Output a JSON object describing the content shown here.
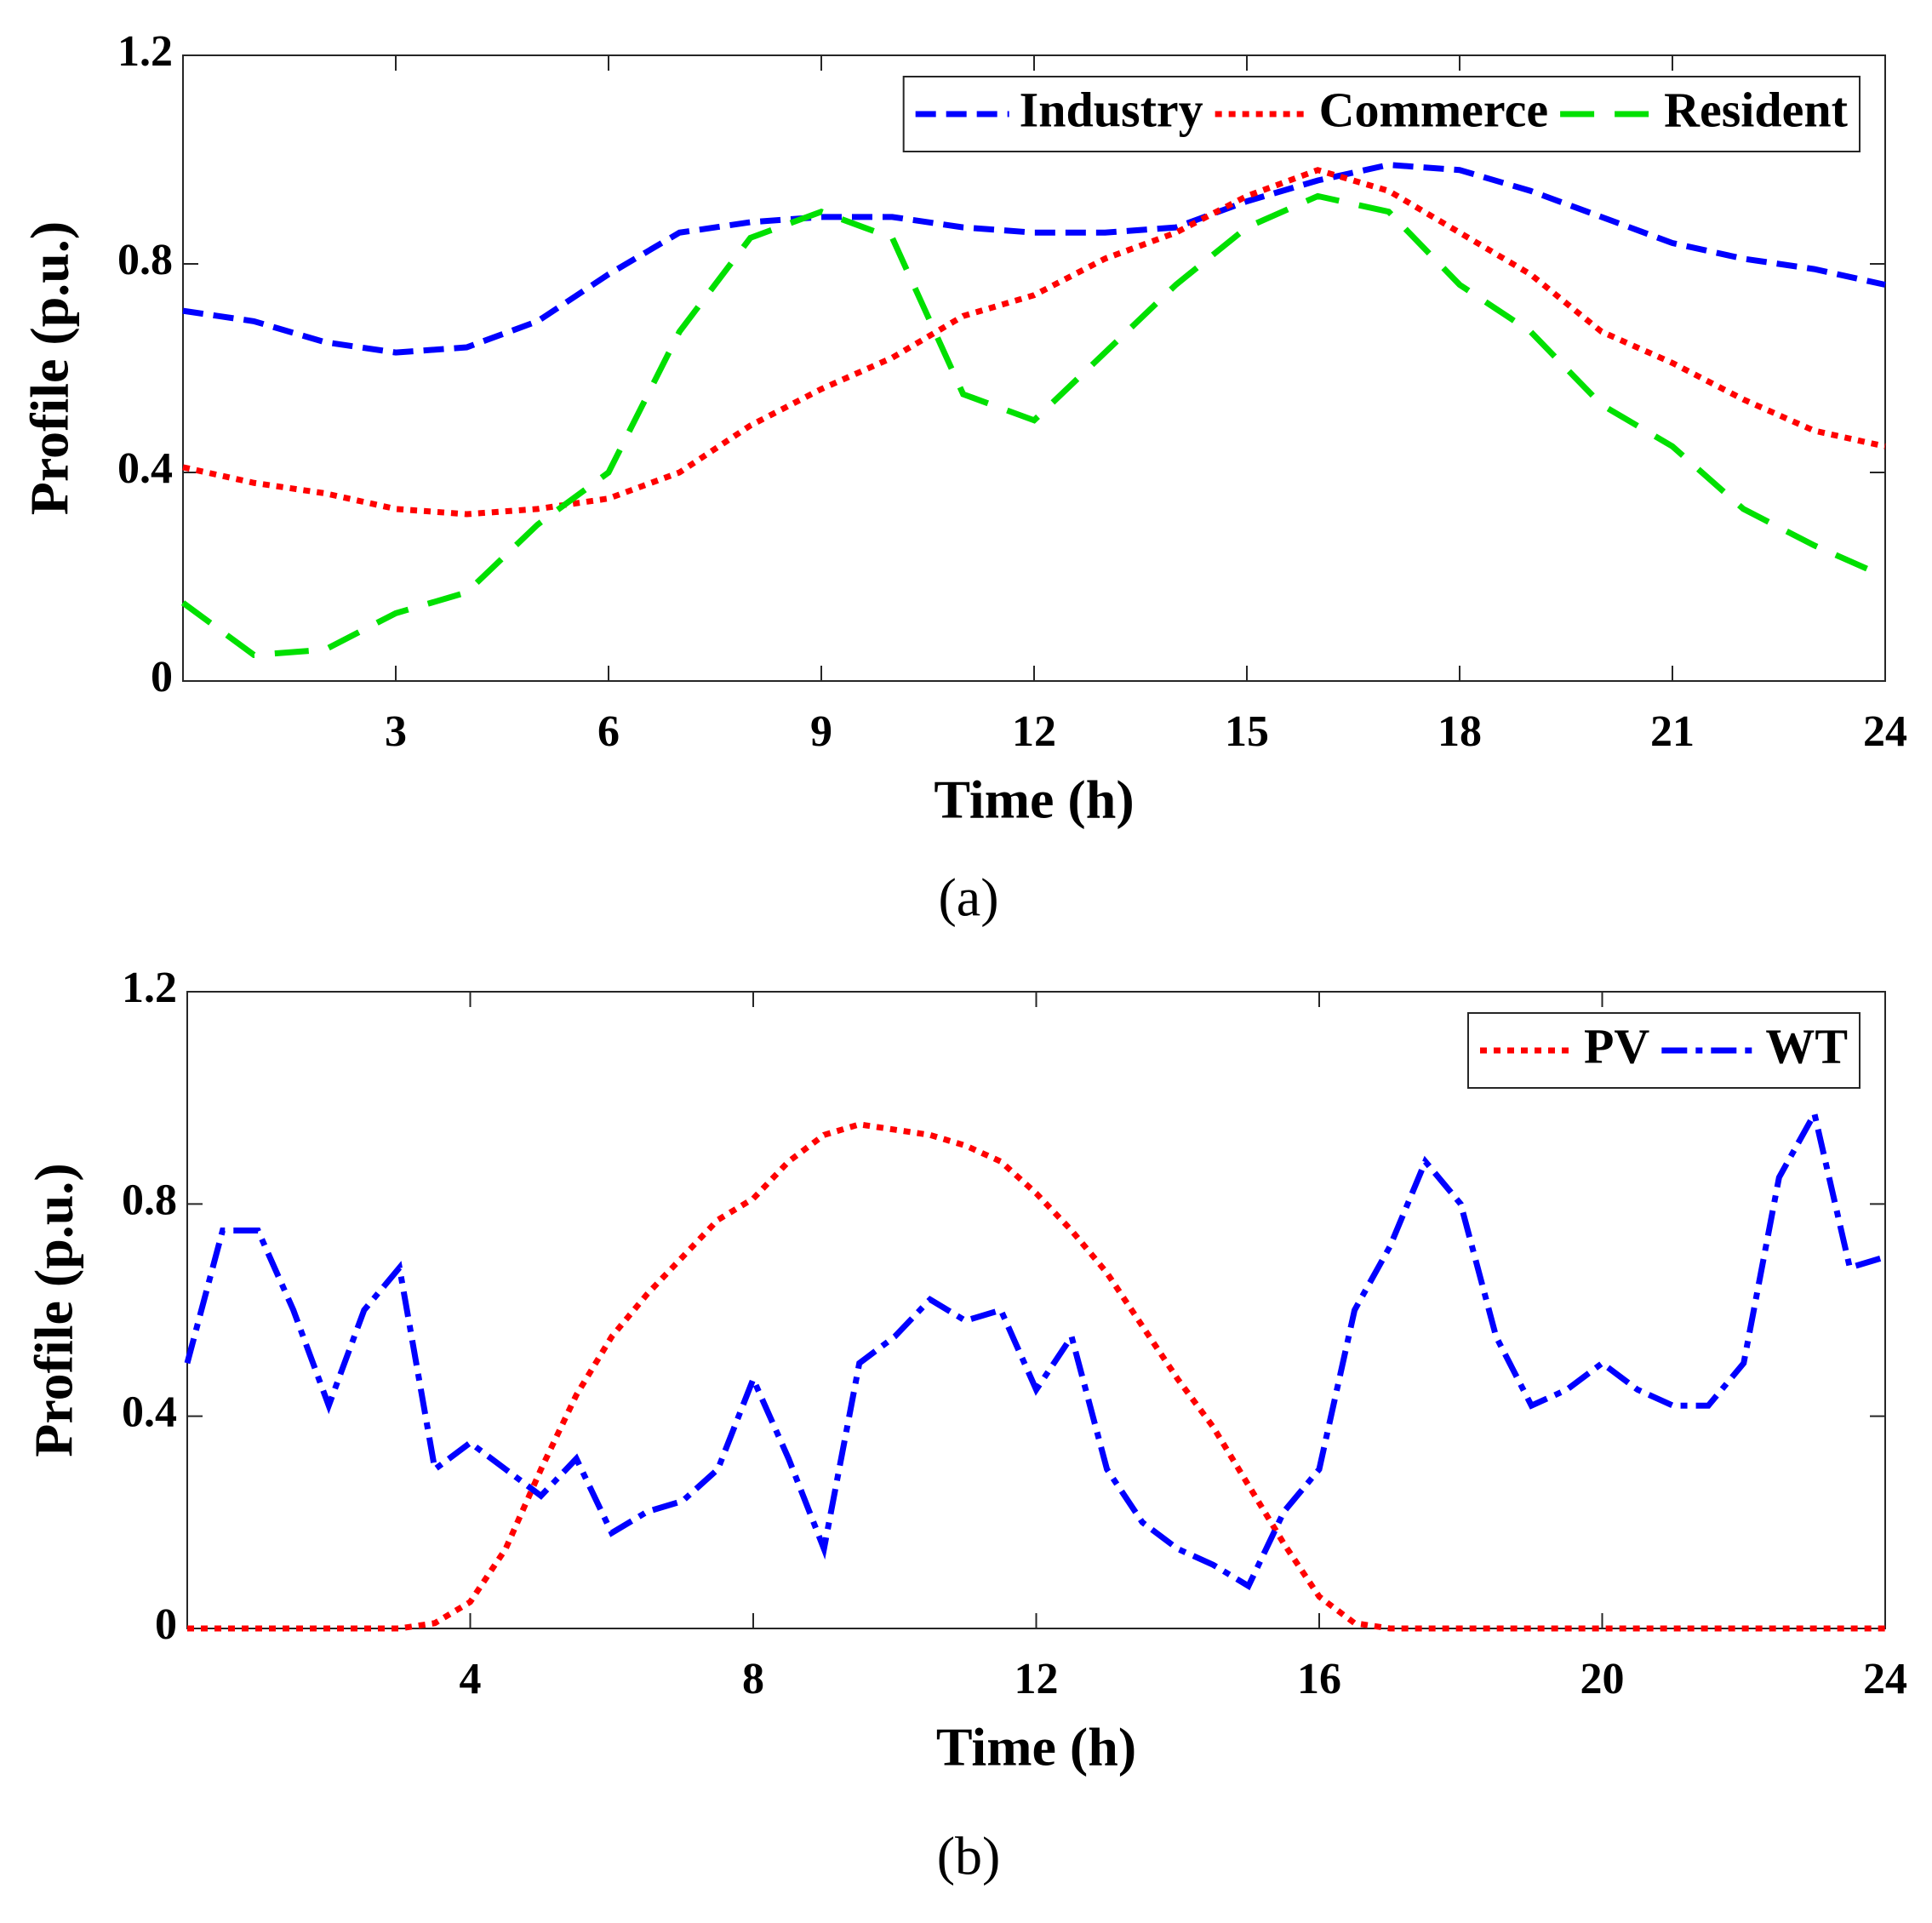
{
  "chart_data": [
    {
      "type": "line",
      "caption": "(a)",
      "xlabel": "Time (h)",
      "ylabel": "Profile (p.u.)",
      "x": [
        0,
        1,
        2,
        3,
        4,
        5,
        6,
        7,
        8,
        9,
        10,
        11,
        12,
        13,
        14,
        15,
        16,
        17,
        18,
        19,
        20,
        21,
        22,
        23,
        24
      ],
      "xlim": [
        0,
        24
      ],
      "xticks": [
        3,
        6,
        9,
        12,
        15,
        18,
        21,
        24
      ],
      "ylim": [
        0,
        1.2
      ],
      "yticks": [
        0,
        0.4,
        0.8,
        1.2
      ],
      "grid": false,
      "legend": "upper right",
      "series": [
        {
          "name": "Industry",
          "color": "#0000ff",
          "line_style": "dashed",
          "values": [
            0.71,
            0.69,
            0.65,
            0.63,
            0.64,
            0.69,
            0.78,
            0.86,
            0.88,
            0.89,
            0.89,
            0.87,
            0.86,
            0.86,
            0.87,
            0.92,
            0.96,
            0.99,
            0.98,
            0.94,
            0.89,
            0.84,
            0.81,
            0.79,
            0.76
          ]
        },
        {
          "name": "Commerce",
          "color": "#ff0000",
          "line_style": "dotted",
          "values": [
            0.41,
            0.38,
            0.36,
            0.33,
            0.32,
            0.33,
            0.35,
            0.4,
            0.49,
            0.56,
            0.62,
            0.7,
            0.74,
            0.81,
            0.86,
            0.93,
            0.98,
            0.94,
            0.86,
            0.78,
            0.67,
            0.61,
            0.54,
            0.48,
            0.45
          ]
        },
        {
          "name": "Resident",
          "color": "#00e000",
          "line_style": "longdash",
          "values": [
            0.15,
            0.05,
            0.06,
            0.13,
            0.17,
            0.3,
            0.4,
            0.67,
            0.85,
            0.9,
            0.85,
            0.55,
            0.5,
            0.63,
            0.76,
            0.87,
            0.93,
            0.9,
            0.76,
            0.67,
            0.53,
            0.45,
            0.33,
            0.26,
            0.2
          ]
        }
      ]
    },
    {
      "type": "line",
      "caption": "(b)",
      "xlabel": "Time (h)",
      "ylabel": "Profile (p.u.)",
      "x": [
        0,
        0.5,
        1,
        1.5,
        2,
        2.5,
        3,
        3.5,
        4,
        4.5,
        5,
        5.5,
        6,
        6.5,
        7,
        7.5,
        8,
        8.5,
        9,
        9.5,
        10,
        10.5,
        11,
        11.5,
        12,
        12.5,
        13,
        13.5,
        14,
        14.5,
        15,
        15.5,
        16,
        16.5,
        17,
        17.5,
        18,
        18.5,
        19,
        19.5,
        20,
        20.5,
        21,
        21.5,
        22,
        22.5,
        23,
        23.5,
        24
      ],
      "xlim": [
        0,
        24
      ],
      "xticks": [
        4,
        8,
        12,
        16,
        20,
        24
      ],
      "ylim": [
        0,
        1.2
      ],
      "yticks": [
        0,
        0.4,
        0.8,
        1.2
      ],
      "grid": false,
      "legend": "upper right",
      "series": [
        {
          "name": "PV",
          "color": "#ff0000",
          "line_style": "dotted",
          "values": [
            0,
            0,
            0,
            0,
            0,
            0,
            0,
            0.01,
            0.05,
            0.15,
            0.3,
            0.44,
            0.55,
            0.63,
            0.7,
            0.77,
            0.81,
            0.88,
            0.93,
            0.95,
            0.94,
            0.93,
            0.91,
            0.88,
            0.82,
            0.75,
            0.67,
            0.57,
            0.47,
            0.38,
            0.27,
            0.16,
            0.06,
            0.01,
            0,
            0,
            0,
            0,
            0,
            0,
            0,
            0,
            0,
            0,
            0,
            0,
            0,
            0,
            0
          ]
        },
        {
          "name": "WT",
          "color": "#0000ff",
          "line_style": "dashdot",
          "values": [
            0.5,
            0.75,
            0.75,
            0.6,
            0.42,
            0.6,
            0.68,
            0.3,
            0.35,
            0.3,
            0.25,
            0.32,
            0.18,
            0.22,
            0.24,
            0.3,
            0.47,
            0.32,
            0.15,
            0.5,
            0.55,
            0.62,
            0.58,
            0.6,
            0.45,
            0.55,
            0.3,
            0.2,
            0.15,
            0.12,
            0.08,
            0.22,
            0.3,
            0.6,
            0.72,
            0.88,
            0.8,
            0.55,
            0.42,
            0.45,
            0.5,
            0.45,
            0.42,
            0.42,
            0.5,
            0.85,
            0.97,
            0.68,
            0.7
          ]
        }
      ]
    }
  ]
}
